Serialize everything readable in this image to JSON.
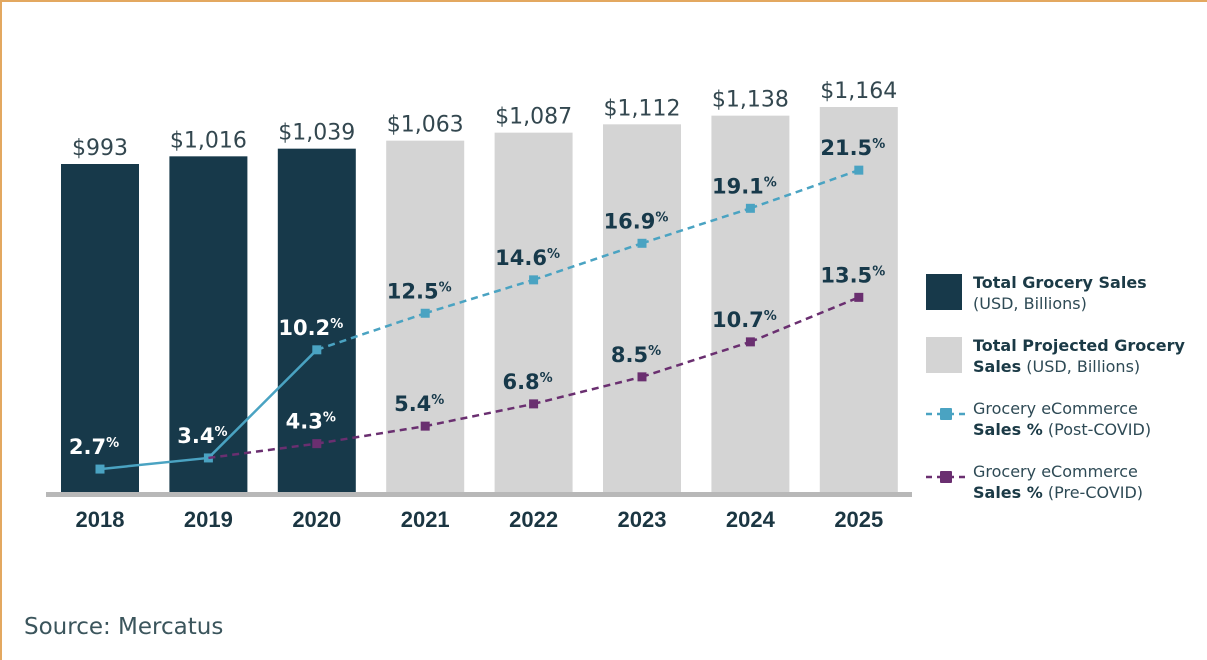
{
  "colors": {
    "actual_bar": "#17394a",
    "projected_bar": "#d4d4d4",
    "post_covid_line": "#4aa3c2",
    "pre_covid_line": "#6a2f70",
    "axis": "#b8b8b8",
    "value_label": "#33474f",
    "dark_label": "#17394a",
    "light_label": "#ffffff",
    "year_label": "#1b3642"
  },
  "source": "Source: Mercatus",
  "chart_data": {
    "type": "bar",
    "title": "",
    "xlabel": "",
    "ylabel": "",
    "categories": [
      "2018",
      "2019",
      "2020",
      "2021",
      "2022",
      "2023",
      "2024",
      "2025"
    ],
    "series": [
      {
        "name": "Total Grocery Sales (USD, Billions)",
        "kind": "bar",
        "values": [
          993,
          1016,
          1039,
          null,
          null,
          null,
          null,
          null
        ],
        "labels": [
          "$993",
          "$1,016",
          "$1,039",
          null,
          null,
          null,
          null,
          null
        ]
      },
      {
        "name": "Total Projected Grocery Sales (USD, Billions)",
        "kind": "bar",
        "values": [
          null,
          null,
          null,
          1063,
          1087,
          1112,
          1138,
          1164
        ],
        "labels": [
          null,
          null,
          null,
          "$1,063",
          "$1,087",
          "$1,112",
          "$1,138",
          "$1,164"
        ]
      },
      {
        "name": "Grocery eCommerce Sales % (Post-COVID)",
        "kind": "line",
        "values": [
          2.7,
          3.4,
          10.2,
          12.5,
          14.6,
          16.9,
          19.1,
          21.5
        ],
        "labels": [
          "2.7",
          "3.4",
          "10.2",
          "12.5",
          "14.6",
          "16.9",
          "19.1",
          "21.5"
        ],
        "solid_until_index": 2
      },
      {
        "name": "Grocery eCommerce Sales % (Pre-COVID)",
        "kind": "line",
        "values": [
          null,
          3.4,
          4.3,
          5.4,
          6.8,
          8.5,
          10.7,
          13.5
        ],
        "labels": [
          null,
          null,
          "4.3",
          "5.4",
          "6.8",
          "8.5",
          "10.7",
          "13.5"
        ]
      }
    ],
    "percent_suffix": "%",
    "legend_position": "right",
    "grid": false
  },
  "legend": [
    {
      "bold": "Total Grocery Sales",
      "rest_line1": "",
      "line2": "(USD, Billions)",
      "bold2": ""
    },
    {
      "bold": "Total Projected Grocery",
      "rest_line1": "",
      "line2": " (USD, Billions)",
      "bold2": "Sales"
    },
    {
      "bold": "",
      "rest_line1": "Grocery eCommerce",
      "line2": " (Post-COVID)",
      "bold2": "Sales %"
    },
    {
      "bold": "",
      "rest_line1": "Grocery eCommerce",
      "line2": " (Pre-COVID)",
      "bold2": "Sales %"
    }
  ]
}
